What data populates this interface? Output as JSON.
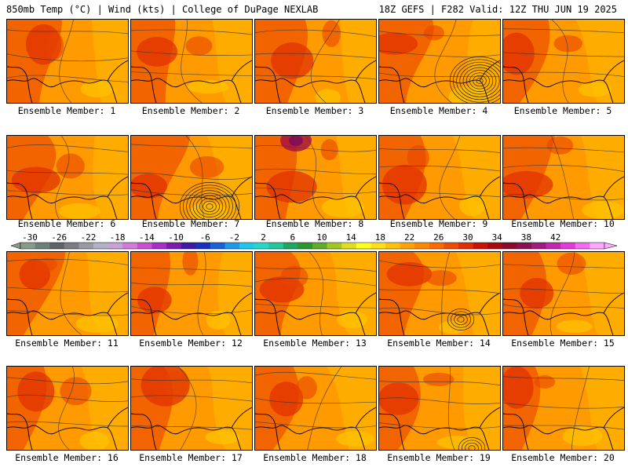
{
  "header": {
    "left_title": "850mb Temp (°C) | Wind (kts) | College of DuPage NEXLAB",
    "right_title": "18Z GEFS | F282 Valid: 12Z THU JUN 19 2025"
  },
  "panels": [
    {
      "label": "Ensemble Member: 1"
    },
    {
      "label": "Ensemble Member: 2"
    },
    {
      "label": "Ensemble Member: 3"
    },
    {
      "label": "Ensemble Member: 4"
    },
    {
      "label": "Ensemble Member: 5"
    },
    {
      "label": "Ensemble Member: 6"
    },
    {
      "label": "Ensemble Member: 7"
    },
    {
      "label": "Ensemble Member: 8"
    },
    {
      "label": "Ensemble Member: 9"
    },
    {
      "label": "Ensemble Member: 10"
    },
    {
      "label": "Ensemble Member: 11"
    },
    {
      "label": "Ensemble Member: 12"
    },
    {
      "label": "Ensemble Member: 13"
    },
    {
      "label": "Ensemble Member: 14"
    },
    {
      "label": "Ensemble Member: 15"
    },
    {
      "label": "Ensemble Member: 16"
    },
    {
      "label": "Ensemble Member: 17"
    },
    {
      "label": "Ensemble Member: 18"
    },
    {
      "label": "Ensemble Member: 19"
    },
    {
      "label": "Ensemble Member: 20"
    }
  ],
  "colorbar": {
    "ticks": [
      "-30",
      "-26",
      "-22",
      "-18",
      "-14",
      "-10",
      "-6",
      "-2",
      "2",
      "6",
      "10",
      "14",
      "18",
      "22",
      "26",
      "30",
      "34",
      "38",
      "42"
    ],
    "colors": [
      "#8a9a8a",
      "#6f7f78",
      "#5e6466",
      "#7c7c84",
      "#9a9aa6",
      "#b2b2c6",
      "#c6a2d6",
      "#d27ad8",
      "#c84ed2",
      "#a82ec6",
      "#7a1cb0",
      "#4018a8",
      "#1830c0",
      "#1a60d8",
      "#1c9ae6",
      "#20c8e8",
      "#26d8c8",
      "#22c89a",
      "#1ca860",
      "#2a962e",
      "#5eac28",
      "#a0c820",
      "#dce01c",
      "#ffff1e",
      "#ffe016",
      "#ffc20c",
      "#ffa204",
      "#ff8800",
      "#fa6a00",
      "#ee4c00",
      "#e02e00",
      "#c81400",
      "#a80a10",
      "#8a0a2a",
      "#8a1050",
      "#a01a80",
      "#c028b0",
      "#e03ad8",
      "#f46af0",
      "#ffa8ff"
    ]
  }
}
